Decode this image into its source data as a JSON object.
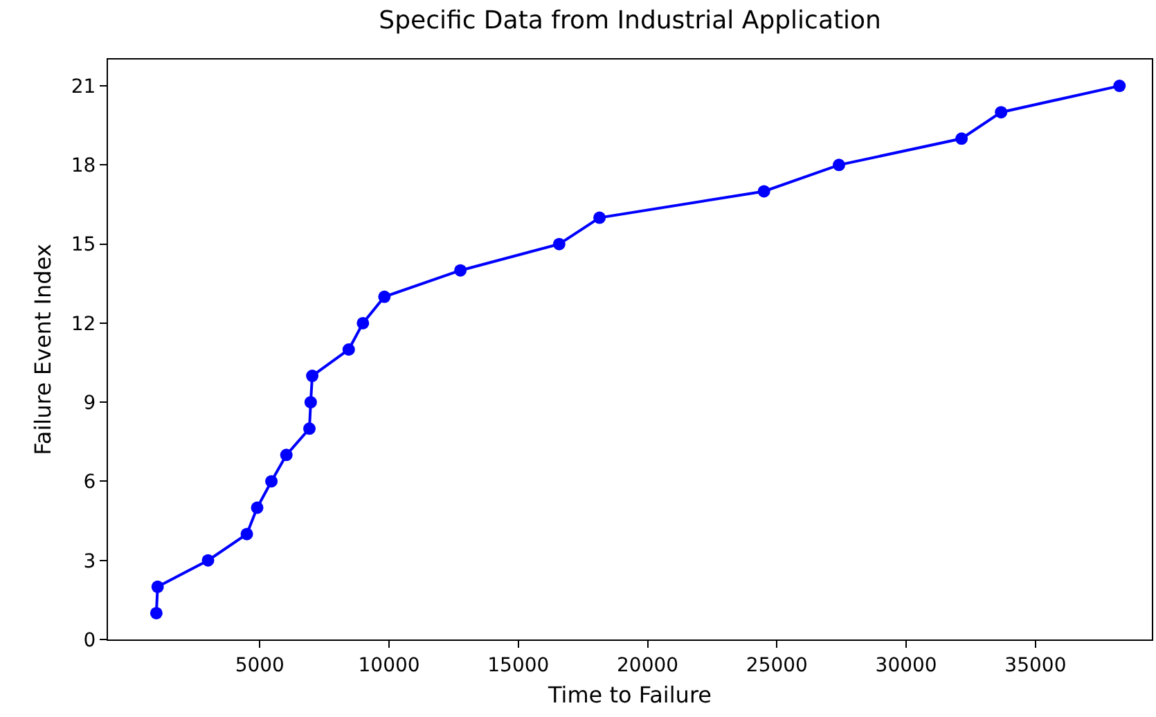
{
  "chart_data": {
    "type": "line",
    "title": "Specific Data from Industrial Application",
    "xlabel": "Time to Failure",
    "ylabel": "Failure Event Index",
    "x": [
      1000,
      1050,
      3000,
      4500,
      4900,
      5450,
      6030,
      6920,
      6970,
      7030,
      8440,
      8990,
      9820,
      12760,
      16580,
      18140,
      24500,
      27400,
      32140,
      33670,
      38250
    ],
    "series": [
      {
        "color": "#0000ff",
        "values": [
          1,
          2,
          3,
          4,
          5,
          6,
          7,
          8,
          9,
          10,
          11,
          12,
          13,
          14,
          15,
          16,
          17,
          18,
          19,
          20,
          21
        ]
      }
    ],
    "xlim": [
      -870,
      39500
    ],
    "ylim": [
      0,
      22
    ],
    "xticks": [
      5000,
      10000,
      15000,
      20000,
      25000,
      30000,
      35000
    ],
    "yticks": [
      0,
      3,
      6,
      9,
      12,
      15,
      18,
      21
    ],
    "marker": "circle",
    "line_style": "solid"
  }
}
